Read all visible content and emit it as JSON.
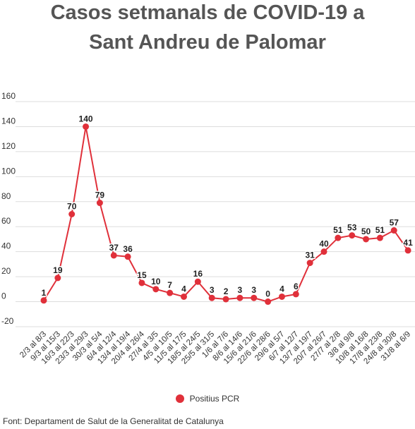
{
  "title_line1": "Casos setmanals de COVID-19 a",
  "title_line2": "Sant Andreu de Palomar",
  "source": "Font: Departament de Salut de la Generalitat de Catalunya",
  "legend_label": "Positius PCR",
  "colors": {
    "series": "#e0303a",
    "grid": "#dddddd",
    "axis_text": "#333333",
    "title": "#555555"
  },
  "chart_data": {
    "type": "line",
    "title": "Casos setmanals de COVID-19 a Sant Andreu de Palomar",
    "xlabel": "",
    "ylabel": "",
    "ylim": [
      -20,
      160
    ],
    "yticks": [
      -20,
      0,
      20,
      40,
      60,
      80,
      100,
      120,
      140,
      160
    ],
    "grid": true,
    "legend_position": "bottom",
    "categories": [
      "2/3 al 8/3",
      "9/3 al 15/3",
      "16/3 al 22/3",
      "23/3 al 29/3",
      "30/3 al 5/4",
      "6/4 al 12/4",
      "13/4 al 19/4",
      "20/4 al 26/4",
      "27/4 al 3/5",
      "4/5 al 10/5",
      "11/5 al 17/5",
      "18/5 al 24/5",
      "25/5 al 31/5",
      "1/6 al 7/6",
      "8/6 al 14/6",
      "15/6 al 21/6",
      "22/6 al 28/6",
      "29/6 al 5/7",
      "6/7 al 12/7",
      "13/7 al 19/7",
      "20/7 al 26/7",
      "27/7 al 2/8",
      "3/8 al 9/8",
      "10/8 al 16/8",
      "17/8 al 23/8",
      "24/8 al 30/8",
      "31/8 al 6/9"
    ],
    "series": [
      {
        "name": "Positius PCR",
        "values": [
          1,
          19,
          70,
          140,
          79,
          37,
          36,
          15,
          10,
          7,
          4,
          16,
          3,
          2,
          3,
          3,
          0,
          4,
          6,
          31,
          40,
          51,
          53,
          50,
          51,
          57,
          41
        ]
      }
    ]
  }
}
